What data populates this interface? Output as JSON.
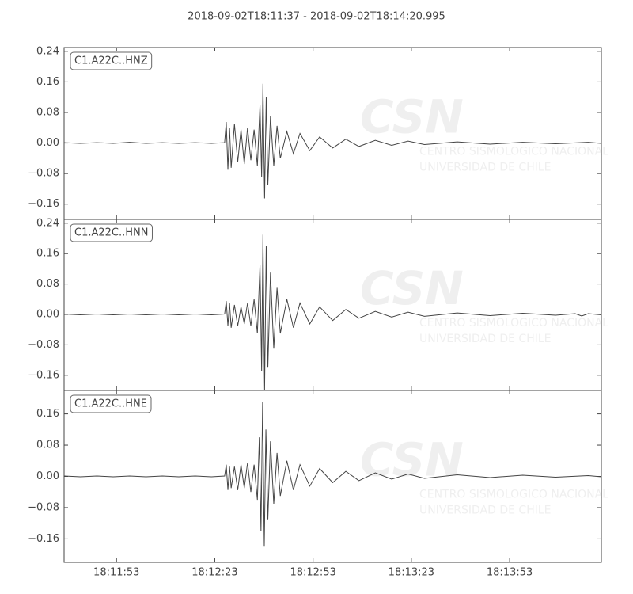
{
  "title": "2018-09-02T18:11:37  -  2018-09-02T18:14:20.995",
  "watermark": {
    "logo": "CSN",
    "lines": [
      "CENTRO SISMOLOGICO NACIONAL",
      "UNIVERSIDAD DE CHILE"
    ]
  },
  "chart_data": [
    {
      "type": "line",
      "label": "C1.A22C..HNZ",
      "color": "#444444",
      "xlim": [
        0,
        163.995
      ],
      "ylim": [
        -0.2,
        0.25
      ],
      "yticks": [
        {
          "value": -0.16,
          "label": "−0.16"
        },
        {
          "value": -0.08,
          "label": "−0.08"
        },
        {
          "value": 0,
          "label": "0.00"
        },
        0.08,
        0.16,
        0.24
      ],
      "x": [
        0,
        5,
        10,
        15,
        20,
        25,
        30,
        35,
        40,
        45,
        49,
        49.5,
        50,
        50.5,
        51,
        52,
        53,
        54,
        55,
        56,
        57,
        58,
        59,
        59.8,
        60.3,
        60.7,
        61.2,
        61.7,
        62.2,
        63,
        64,
        65,
        66,
        68,
        70,
        72,
        75,
        78,
        82,
        86,
        90,
        95,
        100,
        105,
        110,
        120,
        130,
        140,
        150,
        160,
        164
      ],
      "values": [
        0.001,
        -0.001,
        0.001,
        -0.001,
        0.002,
        -0.001,
        0.001,
        -0.001,
        0.001,
        -0.001,
        0.001,
        0.055,
        -0.07,
        0.04,
        -0.065,
        0.05,
        -0.05,
        0.035,
        -0.055,
        0.04,
        -0.045,
        0.035,
        -0.06,
        0.1,
        -0.09,
        0.155,
        -0.145,
        0.12,
        -0.11,
        0.07,
        -0.06,
        0.045,
        -0.04,
        0.03,
        -0.028,
        0.025,
        -0.02,
        0.016,
        -0.013,
        0.01,
        -0.009,
        0.007,
        -0.006,
        0.005,
        -0.004,
        0.003,
        -0.003,
        0.002,
        -0.002,
        0.002,
        -0.001
      ]
    },
    {
      "type": "line",
      "label": "C1.A22C..HNN",
      "color": "#444444",
      "xlim": [
        0,
        163.995
      ],
      "ylim": [
        -0.2,
        0.25
      ],
      "yticks": [
        {
          "value": -0.16,
          "label": "−0.16"
        },
        {
          "value": -0.08,
          "label": "−0.08"
        },
        {
          "value": 0,
          "label": "0.00"
        },
        0.08,
        0.16,
        0.24
      ],
      "x": [
        0,
        5,
        10,
        15,
        20,
        25,
        30,
        35,
        40,
        45,
        49,
        49.5,
        50,
        50.5,
        51,
        52,
        53,
        54,
        55,
        56,
        57,
        58,
        59,
        59.8,
        60.3,
        60.7,
        61.2,
        61.7,
        62.2,
        63,
        64,
        65,
        66,
        68,
        70,
        72,
        75,
        78,
        82,
        86,
        90,
        95,
        100,
        105,
        110,
        120,
        130,
        140,
        150,
        156,
        158,
        160,
        164
      ],
      "values": [
        0.001,
        -0.001,
        0.001,
        -0.001,
        0.001,
        -0.001,
        0.001,
        -0.001,
        0.001,
        -0.001,
        0.001,
        0.035,
        -0.03,
        0.03,
        -0.035,
        0.025,
        -0.03,
        0.02,
        -0.025,
        0.03,
        -0.03,
        0.04,
        -0.05,
        0.13,
        -0.15,
        0.21,
        -0.2,
        0.18,
        -0.14,
        0.11,
        -0.09,
        0.07,
        -0.05,
        0.04,
        -0.035,
        0.03,
        -0.025,
        0.02,
        -0.016,
        0.013,
        -0.01,
        0.008,
        -0.007,
        0.006,
        -0.005,
        0.004,
        -0.003,
        0.003,
        -0.002,
        0.002,
        -0.004,
        0.002,
        -0.001
      ]
    },
    {
      "type": "line",
      "label": "C1.A22C..HNE",
      "color": "#444444",
      "xlim": [
        0,
        163.995
      ],
      "ylim": [
        -0.22,
        0.22
      ],
      "yticks": [
        {
          "value": -0.16,
          "label": "−0.16"
        },
        {
          "value": -0.08,
          "label": "−0.08"
        },
        {
          "value": 0,
          "label": "0.00"
        },
        0.08,
        0.16
      ],
      "xticks": [
        {
          "value": 16,
          "label": "18:11:53"
        },
        {
          "value": 46,
          "label": "18:12:23"
        },
        {
          "value": 76,
          "label": "18:12:53"
        },
        {
          "value": 106,
          "label": "18:13:23"
        },
        {
          "value": 136,
          "label": "18:13:53"
        }
      ],
      "x": [
        0,
        5,
        10,
        15,
        20,
        25,
        30,
        35,
        40,
        45,
        49,
        49.5,
        50,
        50.5,
        51,
        52,
        53,
        54,
        55,
        56,
        57,
        58,
        59,
        59.6,
        60.1,
        60.6,
        61.1,
        61.6,
        62.2,
        63,
        64,
        65,
        66,
        68,
        70,
        72,
        75,
        78,
        82,
        86,
        90,
        95,
        100,
        105,
        110,
        120,
        130,
        140,
        150,
        160,
        164
      ],
      "values": [
        0.001,
        -0.001,
        0.001,
        -0.001,
        0.001,
        -0.001,
        0.001,
        -0.001,
        0.001,
        -0.001,
        0.001,
        0.03,
        -0.035,
        0.025,
        -0.03,
        0.025,
        -0.035,
        0.03,
        -0.03,
        0.035,
        -0.04,
        0.03,
        -0.06,
        0.1,
        -0.14,
        0.19,
        -0.18,
        0.12,
        -0.11,
        0.09,
        -0.07,
        0.06,
        -0.05,
        0.04,
        -0.035,
        0.03,
        -0.025,
        0.02,
        -0.016,
        0.013,
        -0.011,
        0.009,
        -0.007,
        0.006,
        -0.005,
        0.004,
        -0.003,
        0.003,
        -0.002,
        0.002,
        -0.001
      ]
    }
  ]
}
